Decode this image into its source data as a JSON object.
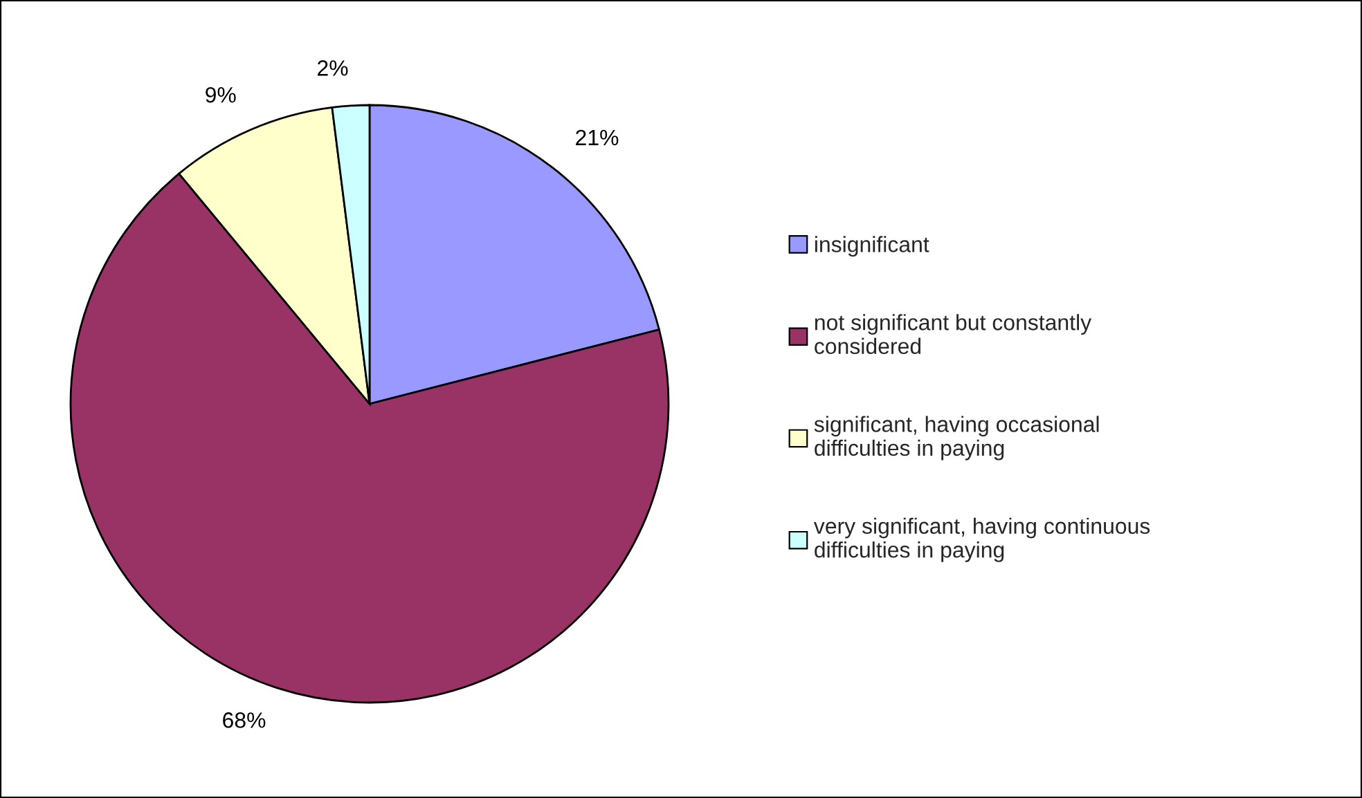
{
  "chart_data": {
    "type": "pie",
    "categories": [
      "insignificant",
      "not significant but constantly\nconsidered",
      "significant, having occasional\ndifficulties in paying",
      "very significant, having continuous\ndifficulties in paying"
    ],
    "values": [
      21,
      68,
      9,
      2
    ],
    "value_labels": [
      "21%",
      "68%",
      "9%",
      "2%"
    ],
    "colors": [
      "#9999ff",
      "#993366",
      "#ffffcc",
      "#ccffff"
    ],
    "legend": "right"
  }
}
